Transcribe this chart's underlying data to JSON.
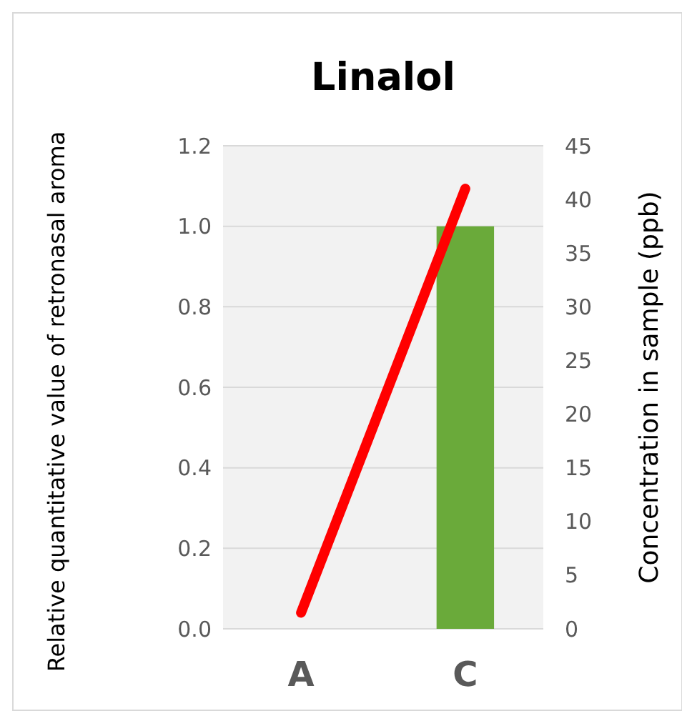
{
  "chart_data": {
    "type": "bar",
    "title": "Linalol",
    "ylabel": "Relative quantitative value of retronasal aroma",
    "y2label": "Concentration in sample (ppb)",
    "categories": [
      "A",
      "C"
    ],
    "series": [
      {
        "color": "#6aaa3a",
        "values": [
          0,
          1.0
        ]
      },
      {
        "type": "line",
        "color": "#ff0000",
        "axis": "y2",
        "values": [
          1.5,
          41
        ]
      }
    ],
    "ylim": [
      0,
      1.2
    ],
    "yticks": [
      {
        "value": 0,
        "label": "0.0"
      },
      {
        "value": 0.2,
        "label": "0.2"
      },
      {
        "value": 0.4,
        "label": "0.4"
      },
      {
        "value": 0.6,
        "label": "0.6"
      },
      {
        "value": 0.8,
        "label": "0.8"
      },
      {
        "value": 1,
        "label": "1.0"
      },
      {
        "value": 1.2,
        "label": "1.2"
      }
    ],
    "y2lim": [
      0,
      45
    ],
    "y2ticks": [
      0,
      5,
      10,
      15,
      20,
      25,
      30,
      35,
      40,
      45
    ],
    "grid": "y"
  }
}
